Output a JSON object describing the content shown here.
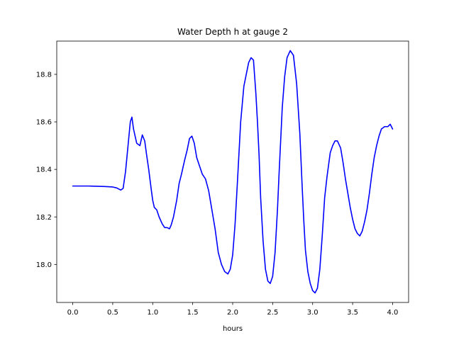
{
  "chart_data": {
    "type": "line",
    "title": "Water Depth h at gauge 2",
    "xlabel": "hours",
    "ylabel": "",
    "xlim": [
      -0.2,
      4.2
    ],
    "ylim": [
      17.84,
      18.94
    ],
    "xticks": [
      0.0,
      0.5,
      1.0,
      1.5,
      2.0,
      2.5,
      3.0,
      3.5,
      4.0
    ],
    "xtick_labels": [
      "0.0",
      "0.5",
      "1.0",
      "1.5",
      "2.0",
      "2.5",
      "3.0",
      "3.5",
      "4.0"
    ],
    "yticks": [
      18.0,
      18.2,
      18.4,
      18.6,
      18.8
    ],
    "ytick_labels": [
      "18.0",
      "18.2",
      "18.4",
      "18.6",
      "18.8"
    ],
    "grid": false,
    "series": [
      {
        "color": "#0000ff",
        "x": [
          0.0,
          0.2,
          0.4,
          0.5,
          0.55,
          0.6,
          0.63,
          0.66,
          0.7,
          0.72,
          0.74,
          0.76,
          0.78,
          0.8,
          0.84,
          0.87,
          0.9,
          0.92,
          0.95,
          0.98,
          1.0,
          1.02,
          1.05,
          1.08,
          1.12,
          1.15,
          1.18,
          1.21,
          1.23,
          1.26,
          1.3,
          1.33,
          1.36,
          1.4,
          1.43,
          1.46,
          1.49,
          1.52,
          1.55,
          1.58,
          1.62,
          1.66,
          1.7,
          1.74,
          1.78,
          1.82,
          1.86,
          1.9,
          1.94,
          1.97,
          2.0,
          2.03,
          2.06,
          2.1,
          2.14,
          2.17,
          2.2,
          2.23,
          2.26,
          2.29,
          2.31,
          2.33,
          2.35,
          2.38,
          2.41,
          2.44,
          2.47,
          2.5,
          2.53,
          2.56,
          2.58,
          2.6,
          2.62,
          2.65,
          2.68,
          2.72,
          2.76,
          2.8,
          2.84,
          2.87,
          2.89,
          2.91,
          2.94,
          2.97,
          3.0,
          3.03,
          3.06,
          3.09,
          3.12,
          3.15,
          3.18,
          3.2,
          3.22,
          3.25,
          3.28,
          3.31,
          3.35,
          3.38,
          3.41,
          3.44,
          3.47,
          3.5,
          3.53,
          3.56,
          3.59,
          3.62,
          3.65,
          3.68,
          3.71,
          3.74,
          3.77,
          3.8,
          3.83,
          3.86,
          3.9,
          3.94,
          3.97,
          4.0
        ],
        "y": [
          18.33,
          18.33,
          18.328,
          18.326,
          18.322,
          18.313,
          18.32,
          18.39,
          18.53,
          18.6,
          18.62,
          18.57,
          18.54,
          18.51,
          18.5,
          18.545,
          18.52,
          18.47,
          18.4,
          18.32,
          18.27,
          18.24,
          18.23,
          18.2,
          18.17,
          18.155,
          18.155,
          18.15,
          18.165,
          18.2,
          18.27,
          18.34,
          18.38,
          18.44,
          18.48,
          18.53,
          18.54,
          18.51,
          18.45,
          18.42,
          18.38,
          18.36,
          18.31,
          18.23,
          18.15,
          18.05,
          18.0,
          17.97,
          17.96,
          17.98,
          18.04,
          18.17,
          18.35,
          18.6,
          18.75,
          18.8,
          18.85,
          18.87,
          18.86,
          18.72,
          18.6,
          18.46,
          18.28,
          18.1,
          17.98,
          17.93,
          17.92,
          17.95,
          18.05,
          18.23,
          18.38,
          18.52,
          18.66,
          18.79,
          18.87,
          18.9,
          18.88,
          18.76,
          18.55,
          18.32,
          18.18,
          18.06,
          17.97,
          17.92,
          17.89,
          17.88,
          17.9,
          17.98,
          18.12,
          18.28,
          18.37,
          18.42,
          18.47,
          18.5,
          18.52,
          18.52,
          18.49,
          18.43,
          18.36,
          18.3,
          18.24,
          18.19,
          18.15,
          18.13,
          18.12,
          18.14,
          18.18,
          18.23,
          18.3,
          18.38,
          18.45,
          18.5,
          18.54,
          18.57,
          18.58,
          18.58,
          18.59,
          18.57
        ]
      }
    ]
  }
}
